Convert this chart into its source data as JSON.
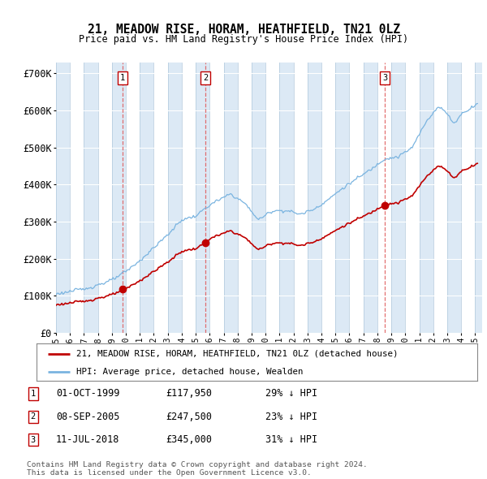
{
  "title": "21, MEADOW RISE, HORAM, HEATHFIELD, TN21 0LZ",
  "subtitle": "Price paid vs. HM Land Registry's House Price Index (HPI)",
  "ylabel_ticks": [
    "£0",
    "£100K",
    "£200K",
    "£300K",
    "£400K",
    "£500K",
    "£600K",
    "£700K"
  ],
  "ytick_values": [
    0,
    100000,
    200000,
    300000,
    400000,
    500000,
    600000,
    700000
  ],
  "ylim": [
    0,
    730000
  ],
  "xlim_start": 1995.0,
  "xlim_end": 2025.5,
  "plot_bg_color": "#dce9f5",
  "alt_bg_color": "#ffffff",
  "grid_color": "#c8d8e8",
  "hpi_color": "#7ab4e0",
  "price_color": "#c00000",
  "vline_color": "#e06060",
  "legend_label_price": "21, MEADOW RISE, HORAM, HEATHFIELD, TN21 0LZ (detached house)",
  "legend_label_hpi": "HPI: Average price, detached house, Wealden",
  "transactions": [
    {
      "label": "1",
      "date": "01-OCT-1999",
      "price": 117950,
      "year": 1999.75,
      "price_str": "£117,950",
      "hpi_pct": "29% ↓ HPI"
    },
    {
      "label": "2",
      "date": "08-SEP-2005",
      "price": 247500,
      "year": 2005.69,
      "price_str": "£247,500",
      "hpi_pct": "23% ↓ HPI"
    },
    {
      "label": "3",
      "date": "11-JUL-2018",
      "price": 345000,
      "year": 2018.53,
      "price_str": "£345,000",
      "hpi_pct": "31% ↓ HPI"
    }
  ],
  "footer_line1": "Contains HM Land Registry data © Crown copyright and database right 2024.",
  "footer_line2": "This data is licensed under the Open Government Licence v3.0.",
  "box_color": "#c00000"
}
